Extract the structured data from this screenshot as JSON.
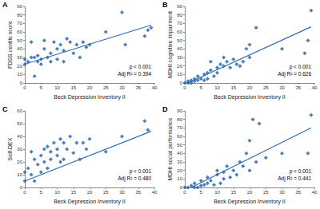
{
  "chart_data": [
    {
      "type": "scatter",
      "label": "A",
      "x_label": "Beck Depression Inventory II",
      "y_label": "FDSS centile score",
      "annotations": [
        "p < 0.001",
        "Adj R² = 0.394"
      ],
      "xlim": [
        0,
        40
      ],
      "xticks": [
        0,
        5,
        10,
        15,
        20,
        25,
        30,
        35,
        40
      ],
      "ylim": [
        0,
        90
      ],
      "yticks": [
        0,
        10,
        20,
        30,
        40,
        50,
        60,
        70,
        80,
        90
      ],
      "grid": false,
      "series": [
        {
          "type": "scatter",
          "marker": "diamond",
          "color": "#1f5fa8",
          "x": [
            0,
            0,
            1,
            2,
            2,
            3,
            3,
            4,
            4,
            5,
            5,
            6,
            6,
            7,
            8,
            8,
            9,
            10,
            10,
            11,
            12,
            12,
            13,
            14,
            15,
            16,
            17,
            18,
            19,
            20,
            25,
            30,
            31,
            37,
            38,
            39
          ],
          "values": [
            28,
            22,
            25,
            30,
            48,
            30,
            8,
            25,
            32,
            22,
            28,
            50,
            40,
            30,
            25,
            35,
            48,
            40,
            28,
            45,
            38,
            25,
            52,
            48,
            35,
            45,
            30,
            48,
            42,
            45,
            60,
            83,
            45,
            55,
            62,
            65
          ]
        },
        {
          "type": "line",
          "line_style": "solid",
          "color": "#2e6db4",
          "x": [
            0,
            39
          ],
          "values": [
            22,
            68
          ]
        }
      ]
    },
    {
      "type": "scatter",
      "label": "B",
      "x_label": "Beck Depression Inventory II",
      "y_label": "MDHI cognitive impairment",
      "annotations": [
        "p < 0.001",
        "Adj R² = 0.626"
      ],
      "xlim": [
        0,
        40
      ],
      "xticks": [
        0,
        5,
        10,
        15,
        20,
        25,
        30,
        35,
        40
      ],
      "ylim": [
        0,
        90
      ],
      "yticks": [
        0,
        10,
        20,
        30,
        40,
        50,
        60,
        70,
        80,
        90
      ],
      "grid": false,
      "series": [
        {
          "type": "scatter",
          "marker": "diamond",
          "color": "#1f5fa8",
          "x": [
            0,
            1,
            1,
            2,
            2,
            3,
            3,
            4,
            4,
            5,
            6,
            6,
            7,
            7,
            8,
            8,
            9,
            10,
            10,
            11,
            12,
            12,
            13,
            14,
            15,
            16,
            17,
            18,
            19,
            20,
            20,
            22,
            30,
            37,
            38,
            39
          ],
          "values": [
            0,
            0,
            2,
            3,
            0,
            5,
            2,
            8,
            3,
            5,
            10,
            3,
            12,
            5,
            15,
            25,
            8,
            18,
            12,
            22,
            20,
            30,
            25,
            18,
            28,
            22,
            20,
            25,
            40,
            30,
            45,
            65,
            40,
            35,
            50,
            85
          ]
        },
        {
          "type": "line",
          "line_style": "solid",
          "color": "#2e6db4",
          "x": [
            1,
            39
          ],
          "values": [
            0,
            66
          ]
        }
      ]
    },
    {
      "type": "scatter",
      "label": "C",
      "x_label": "Beck Depression Inventory II",
      "y_label": "Self-DEX",
      "annotations": [
        "p < 0.001",
        "Adj R² = 0.480"
      ],
      "xlim": [
        0,
        40
      ],
      "xticks": [
        0,
        5,
        10,
        15,
        20,
        25,
        30,
        35,
        40
      ],
      "ylim": [
        0,
        60
      ],
      "yticks": [
        0,
        10,
        20,
        30,
        40,
        50,
        60
      ],
      "grid": false,
      "series": [
        {
          "type": "scatter",
          "marker": "diamond",
          "color": "#1f5fa8",
          "x": [
            0,
            0,
            1,
            2,
            2,
            3,
            3,
            4,
            5,
            5,
            6,
            6,
            7,
            7,
            8,
            8,
            9,
            10,
            10,
            11,
            11,
            12,
            12,
            13,
            14,
            15,
            16,
            17,
            18,
            19,
            20,
            25,
            30,
            37,
            38
          ],
          "values": [
            12,
            5,
            15,
            10,
            28,
            5,
            22,
            18,
            12,
            25,
            20,
            30,
            15,
            32,
            22,
            28,
            35,
            25,
            30,
            20,
            38,
            22,
            35,
            30,
            40,
            27,
            35,
            22,
            35,
            30,
            38,
            28,
            40,
            52,
            45
          ]
        },
        {
          "type": "line",
          "line_style": "solid",
          "color": "#2e6db4",
          "x": [
            0,
            39
          ],
          "values": [
            5,
            44
          ]
        }
      ]
    },
    {
      "type": "scatter",
      "label": "D",
      "x_label": "Beck Depression Inventory II",
      "y_label": "MDHI social performance",
      "annotations": [
        "p < 0.001",
        "Adj R² = 0.441"
      ],
      "xlim": [
        0,
        40
      ],
      "xticks": [
        0,
        5,
        10,
        15,
        20,
        25,
        30,
        35,
        40
      ],
      "ylim": [
        0,
        90
      ],
      "yticks": [
        0,
        10,
        20,
        30,
        40,
        50,
        60,
        70,
        80,
        90
      ],
      "grid": false,
      "series": [
        {
          "type": "scatter",
          "marker": "diamond",
          "color": "#1f5fa8",
          "x": [
            0,
            1,
            2,
            3,
            3,
            4,
            5,
            5,
            6,
            7,
            7,
            8,
            9,
            10,
            10,
            11,
            12,
            12,
            13,
            14,
            15,
            16,
            17,
            18,
            19,
            20,
            20,
            21,
            22,
            23,
            25,
            30,
            38,
            39
          ],
          "values": [
            0,
            0,
            2,
            0,
            5,
            0,
            2,
            8,
            3,
            5,
            12,
            8,
            3,
            15,
            20,
            5,
            18,
            10,
            25,
            12,
            20,
            15,
            30,
            25,
            40,
            20,
            55,
            80,
            30,
            75,
            35,
            40,
            40,
            85
          ]
        },
        {
          "type": "line",
          "line_style": "solid",
          "color": "#2e6db4",
          "x": [
            2,
            39
          ],
          "values": [
            0,
            70
          ]
        }
      ]
    }
  ]
}
